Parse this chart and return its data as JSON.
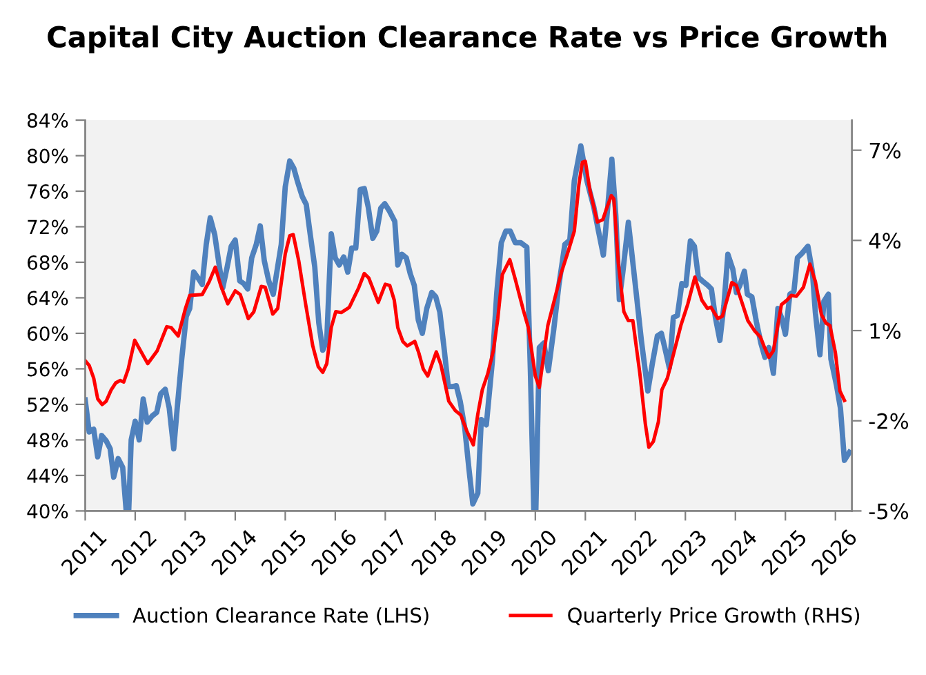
{
  "chart_data": {
    "type": "line",
    "title": "Capital City Auction Clearance Rate vs Price Growth",
    "xlim": [
      2011,
      2026.33
    ],
    "xticks": [
      2011,
      2012,
      2013,
      2014,
      2015,
      2016,
      2017,
      2018,
      2019,
      2020,
      2021,
      2022,
      2023,
      2024,
      2025,
      2026
    ],
    "ylim": [
      40,
      84
    ],
    "yticks": [
      {
        "value": 40,
        "label": "40%"
      },
      {
        "value": 44,
        "label": "44%"
      },
      {
        "value": 48,
        "label": "48%"
      },
      {
        "value": 52,
        "label": "52%"
      },
      {
        "value": 56,
        "label": "56%"
      },
      {
        "value": 60,
        "label": "60%"
      },
      {
        "value": 64,
        "label": "64%"
      },
      {
        "value": 68,
        "label": "68%"
      },
      {
        "value": 72,
        "label": "72%"
      },
      {
        "value": 76,
        "label": "76%"
      },
      {
        "value": 80,
        "label": "80%"
      },
      {
        "value": 84,
        "label": "84%"
      }
    ],
    "y2lim": [
      -5,
      8
    ],
    "y2ticks": [
      {
        "value": -5,
        "label": "-5%"
      },
      {
        "value": -2,
        "label": "-2%"
      },
      {
        "value": 1,
        "label": "1%"
      },
      {
        "value": 4,
        "label": "4%"
      },
      {
        "value": 7,
        "label": "7%"
      }
    ],
    "grid": false,
    "legend": "bottom",
    "marker": "none",
    "line_style": "solid",
    "series": [
      {
        "name": "Auction Clearance Rate (LHS)",
        "color": "#4f81bd",
        "x": [
          2011.0,
          2011.08,
          2011.17,
          2011.25,
          2011.33,
          2011.42,
          2011.5,
          2011.57,
          2011.66,
          2011.75,
          2011.82,
          2011.87,
          2011.92,
          2012.0,
          2012.08,
          2012.16,
          2012.24,
          2012.34,
          2012.43,
          2012.51,
          2012.6,
          2012.68,
          2012.77,
          2012.84,
          2012.93,
          2013.02,
          2013.09,
          2013.17,
          2013.26,
          2013.34,
          2013.42,
          2013.5,
          2013.59,
          2013.67,
          2013.75,
          2013.84,
          2013.92,
          2014.0,
          2014.09,
          2014.17,
          2014.25,
          2014.33,
          2014.42,
          2014.5,
          2014.58,
          2014.67,
          2014.76,
          2014.84,
          2014.92,
          2015.0,
          2015.09,
          2015.17,
          2015.25,
          2015.34,
          2015.42,
          2015.5,
          2015.59,
          2015.67,
          2015.75,
          2015.83,
          2015.92,
          2016.0,
          2016.08,
          2016.17,
          2016.25,
          2016.33,
          2016.41,
          2016.5,
          2016.58,
          2016.66,
          2016.75,
          2016.83,
          2016.91,
          2016.99,
          2017.08,
          2017.19,
          2017.25,
          2017.33,
          2017.42,
          2017.5,
          2017.58,
          2017.66,
          2017.74,
          2017.83,
          2017.93,
          2018.01,
          2018.09,
          2018.17,
          2018.26,
          2018.34,
          2018.42,
          2018.5,
          2018.59,
          2018.67,
          2018.75,
          2018.85,
          2018.92,
          2019.02,
          2019.14,
          2019.23,
          2019.32,
          2019.41,
          2019.5,
          2019.6,
          2019.71,
          2019.83,
          2019.9,
          2019.97,
          2020.01,
          2020.08,
          2020.17,
          2020.26,
          2020.37,
          2020.47,
          2020.59,
          2020.69,
          2020.78,
          2020.91,
          2021.03,
          2021.17,
          2021.26,
          2021.36,
          2021.44,
          2021.53,
          2021.61,
          2021.68,
          2021.75,
          2021.86,
          2021.92,
          2022.01,
          2022.12,
          2022.25,
          2022.34,
          2022.44,
          2022.52,
          2022.6,
          2022.68,
          2022.76,
          2022.84,
          2022.93,
          2023.01,
          2023.1,
          2023.18,
          2023.26,
          2023.36,
          2023.45,
          2023.52,
          2023.6,
          2023.69,
          2023.77,
          2023.85,
          2023.95,
          2024.02,
          2024.09,
          2024.18,
          2024.24,
          2024.33,
          2024.42,
          2024.51,
          2024.59,
          2024.67,
          2024.76,
          2024.85,
          2024.92,
          2025.0,
          2025.09,
          2025.17,
          2025.24,
          2025.33,
          2025.45,
          2025.54,
          2025.6,
          2025.69,
          2025.77,
          2025.86,
          2025.91,
          2026.02,
          2026.1,
          2026.18,
          2026.28
        ],
        "values": [
          52.5,
          48.9,
          49.2,
          46.1,
          48.5,
          47.9,
          47.0,
          43.8,
          45.9,
          44.9,
          40,
          40,
          48.0,
          50.1,
          48.0,
          52.6,
          50.0,
          50.7,
          51.1,
          53.2,
          53.7,
          51.6,
          47.0,
          51.6,
          57.1,
          61.9,
          62.8,
          66.9,
          66.2,
          65.5,
          70.0,
          73.0,
          71.1,
          68.0,
          65.1,
          67.5,
          69.8,
          70.5,
          65.9,
          65.6,
          65.0,
          68.5,
          70.0,
          72.1,
          68.2,
          65.9,
          64.4,
          67.2,
          70.0,
          76.5,
          79.4,
          78.6,
          77.0,
          75.4,
          74.5,
          71.1,
          67.5,
          61.2,
          58.1,
          59.2,
          71.2,
          68.5,
          67.7,
          68.6,
          66.9,
          69.6,
          69.6,
          76.2,
          76.3,
          74.2,
          70.7,
          71.5,
          74.1,
          74.6,
          73.8,
          72.6,
          67.7,
          68.9,
          68.5,
          66.7,
          65.4,
          61.5,
          60.0,
          62.8,
          64.6,
          64.1,
          62.4,
          58.6,
          54.0,
          54.0,
          54.1,
          52.3,
          49.3,
          44.9,
          40.8,
          42.0,
          50.3,
          49.7,
          56.8,
          64.6,
          70.2,
          71.5,
          71.5,
          70.2,
          70.2,
          69.7,
          56.1,
          40,
          40,
          58.4,
          58.9,
          55.8,
          60.5,
          65.4,
          70.0,
          70.5,
          77.2,
          81.1,
          77.2,
          74.2,
          71.6,
          68.8,
          73.7,
          79.6,
          73.2,
          63.8,
          66.9,
          72.5,
          69.5,
          64.9,
          59.2,
          53.5,
          56.6,
          59.7,
          60.0,
          58.1,
          56.1,
          61.8,
          62.0,
          65.6,
          65.4,
          70.4,
          69.8,
          66.3,
          65.8,
          65.4,
          65.0,
          61.8,
          59.2,
          63.1,
          68.9,
          67.2,
          64.6,
          65.4,
          67.0,
          64.4,
          64.1,
          61.3,
          58.9,
          57.3,
          58.4,
          55.5,
          62.8,
          61.8,
          59.9,
          64.4,
          64.7,
          68.5,
          69.0,
          69.8,
          66.9,
          62.3,
          57.6,
          63.6,
          64.4,
          57.1,
          54.2,
          51.6,
          45.7,
          46.6
        ]
      },
      {
        "name": "Quarterly Price Growth (RHS)",
        "color": "#ff0000",
        "axis": "y2",
        "x": [
          2011.0,
          2011.08,
          2011.17,
          2011.25,
          2011.34,
          2011.42,
          2011.52,
          2011.61,
          2011.7,
          2011.77,
          2011.86,
          2011.99,
          2012.08,
          2012.25,
          2012.44,
          2012.63,
          2012.72,
          2012.86,
          2013.0,
          2013.09,
          2013.34,
          2013.48,
          2013.6,
          2013.71,
          2013.85,
          2014.0,
          2014.1,
          2014.26,
          2014.37,
          2014.52,
          2014.6,
          2014.75,
          2014.85,
          2015.0,
          2015.09,
          2015.16,
          2015.27,
          2015.41,
          2015.55,
          2015.66,
          2015.75,
          2015.83,
          2015.92,
          2016.01,
          2016.12,
          2016.28,
          2016.47,
          2016.58,
          2016.67,
          2016.86,
          2017.0,
          2017.09,
          2017.18,
          2017.25,
          2017.35,
          2017.44,
          2017.59,
          2017.67,
          2017.76,
          2017.85,
          2018.02,
          2018.11,
          2018.27,
          2018.4,
          2018.51,
          2018.63,
          2018.76,
          2018.85,
          2018.94,
          2019.05,
          2019.16,
          2019.25,
          2019.34,
          2019.49,
          2019.6,
          2019.76,
          2019.86,
          2020.0,
          2020.08,
          2020.25,
          2020.38,
          2020.52,
          2020.66,
          2020.78,
          2020.87,
          2020.94,
          2021.0,
          2021.09,
          2021.24,
          2021.35,
          2021.42,
          2021.52,
          2021.57,
          2021.66,
          2021.77,
          2021.86,
          2021.95,
          2022.09,
          2022.2,
          2022.27,
          2022.36,
          2022.46,
          2022.53,
          2022.64,
          2022.78,
          2022.91,
          2023.05,
          2023.19,
          2023.33,
          2023.44,
          2023.51,
          2023.65,
          2023.74,
          2023.93,
          2024.02,
          2024.13,
          2024.25,
          2024.39,
          2024.5,
          2024.57,
          2024.67,
          2024.76,
          2024.92,
          2025.03,
          2025.12,
          2025.22,
          2025.36,
          2025.49,
          2025.6,
          2025.72,
          2025.81,
          2025.89,
          2026.0,
          2026.09,
          2026.18
        ],
        "values": [
          0.0,
          -0.16,
          -0.58,
          -1.27,
          -1.46,
          -1.35,
          -0.97,
          -0.74,
          -0.66,
          -0.71,
          -0.28,
          0.68,
          0.41,
          -0.1,
          0.33,
          1.13,
          1.1,
          0.82,
          1.71,
          2.17,
          2.2,
          2.63,
          3.11,
          2.5,
          1.89,
          2.32,
          2.2,
          1.4,
          1.62,
          2.47,
          2.44,
          1.55,
          1.74,
          3.55,
          4.16,
          4.19,
          3.32,
          1.86,
          0.49,
          -0.2,
          -0.39,
          -0.1,
          1.1,
          1.63,
          1.6,
          1.77,
          2.43,
          2.9,
          2.75,
          1.94,
          2.54,
          2.5,
          2.01,
          1.1,
          0.64,
          0.49,
          0.64,
          0.26,
          -0.28,
          -0.51,
          0.29,
          -0.12,
          -1.35,
          -1.66,
          -1.81,
          -2.34,
          -2.8,
          -1.78,
          -0.97,
          -0.43,
          0.33,
          1.4,
          2.86,
          3.36,
          2.7,
          1.68,
          1.1,
          -0.51,
          -0.89,
          1.17,
          2.01,
          2.93,
          3.65,
          4.31,
          5.84,
          6.6,
          6.63,
          5.68,
          4.61,
          4.69,
          5.04,
          5.49,
          5.38,
          3.24,
          1.63,
          1.33,
          1.33,
          -0.43,
          -2.11,
          -2.88,
          -2.69,
          -2.04,
          -0.97,
          -0.58,
          0.33,
          1.17,
          1.89,
          2.78,
          2.01,
          1.74,
          1.78,
          1.4,
          1.48,
          2.6,
          2.5,
          1.94,
          1.33,
          0.98,
          0.79,
          0.49,
          0.11,
          0.33,
          1.86,
          2.01,
          2.17,
          2.14,
          2.44,
          3.21,
          2.63,
          1.53,
          1.25,
          1.17,
          0.26,
          -1.01,
          -1.32
        ]
      }
    ]
  }
}
